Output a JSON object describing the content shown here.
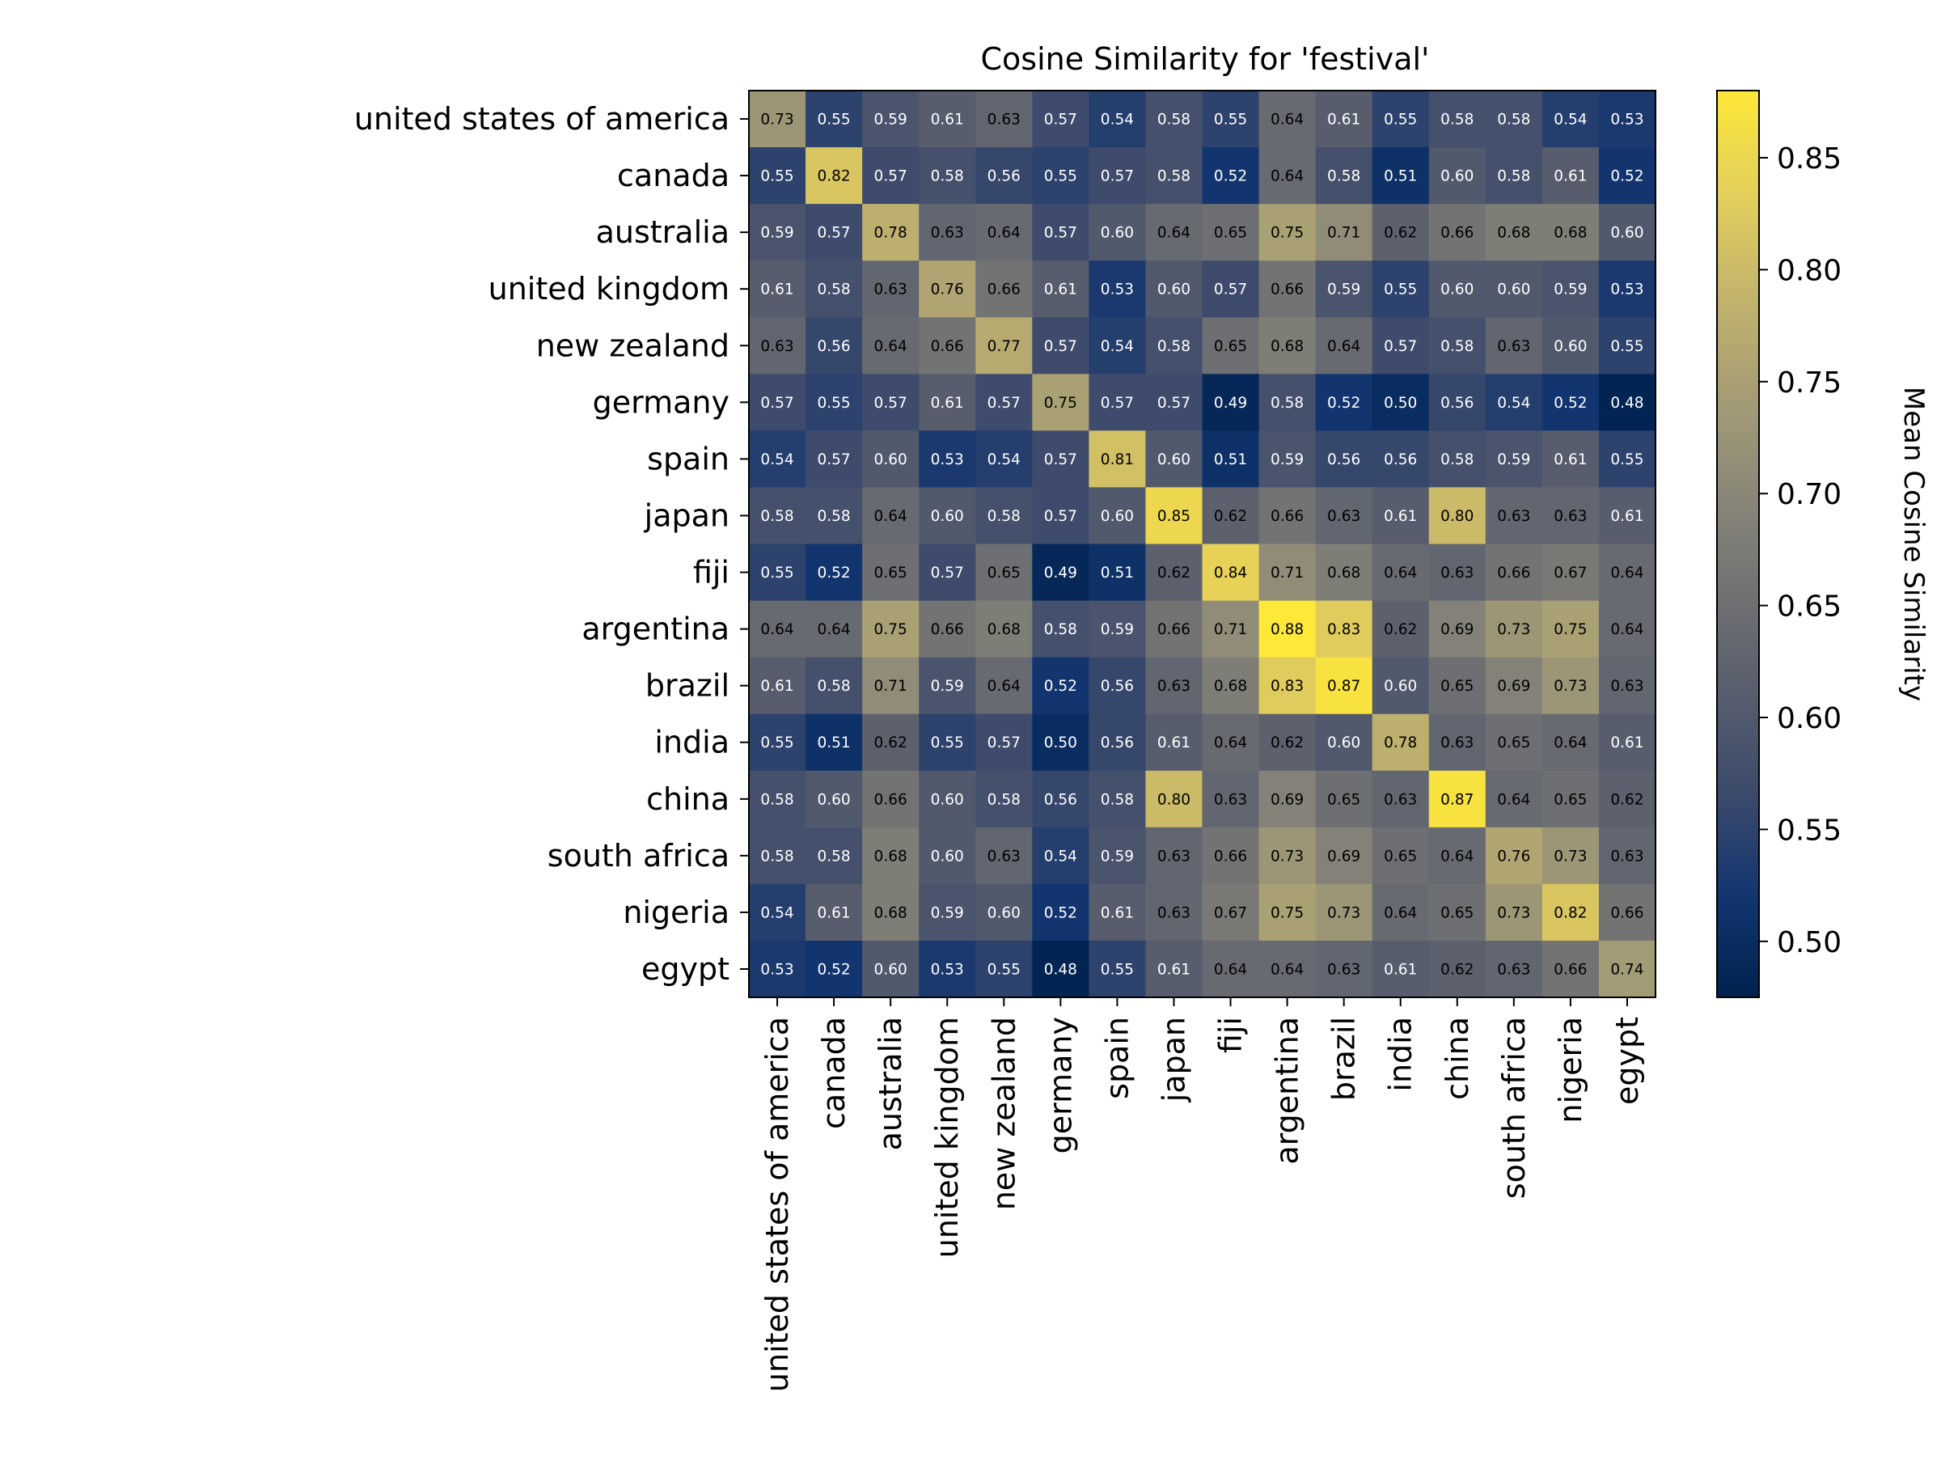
{
  "chart_data": {
    "type": "heatmap",
    "title": "Cosine Similarity for 'festival'",
    "rows": [
      "united states of america",
      "canada",
      "australia",
      "united kingdom",
      "new zealand",
      "germany",
      "spain",
      "japan",
      "fiji",
      "argentina",
      "brazil",
      "india",
      "china",
      "south africa",
      "nigeria",
      "egypt"
    ],
    "cols": [
      "united states of america",
      "canada",
      "australia",
      "united kingdom",
      "new zealand",
      "germany",
      "spain",
      "japan",
      "fiji",
      "argentina",
      "brazil",
      "india",
      "china",
      "south africa",
      "nigeria",
      "egypt"
    ],
    "values": [
      [
        0.73,
        0.55,
        0.59,
        0.61,
        0.63,
        0.57,
        0.54,
        0.58,
        0.55,
        0.64,
        0.61,
        0.55,
        0.58,
        0.58,
        0.54,
        0.53
      ],
      [
        0.55,
        0.82,
        0.57,
        0.58,
        0.56,
        0.55,
        0.57,
        0.58,
        0.52,
        0.64,
        0.58,
        0.51,
        0.6,
        0.58,
        0.61,
        0.52
      ],
      [
        0.59,
        0.57,
        0.78,
        0.63,
        0.64,
        0.57,
        0.6,
        0.64,
        0.65,
        0.75,
        0.71,
        0.62,
        0.66,
        0.68,
        0.68,
        0.6
      ],
      [
        0.61,
        0.58,
        0.63,
        0.76,
        0.66,
        0.61,
        0.53,
        0.6,
        0.57,
        0.66,
        0.59,
        0.55,
        0.6,
        0.6,
        0.59,
        0.53
      ],
      [
        0.63,
        0.56,
        0.64,
        0.66,
        0.77,
        0.57,
        0.54,
        0.58,
        0.65,
        0.68,
        0.64,
        0.57,
        0.58,
        0.63,
        0.6,
        0.55
      ],
      [
        0.57,
        0.55,
        0.57,
        0.61,
        0.57,
        0.75,
        0.57,
        0.57,
        0.49,
        0.58,
        0.52,
        0.5,
        0.56,
        0.54,
        0.52,
        0.48
      ],
      [
        0.54,
        0.57,
        0.6,
        0.53,
        0.54,
        0.57,
        0.81,
        0.6,
        0.51,
        0.59,
        0.56,
        0.56,
        0.58,
        0.59,
        0.61,
        0.55
      ],
      [
        0.58,
        0.58,
        0.64,
        0.6,
        0.58,
        0.57,
        0.6,
        0.85,
        0.62,
        0.66,
        0.63,
        0.61,
        0.8,
        0.63,
        0.63,
        0.61
      ],
      [
        0.55,
        0.52,
        0.65,
        0.57,
        0.65,
        0.49,
        0.51,
        0.62,
        0.84,
        0.71,
        0.68,
        0.64,
        0.63,
        0.66,
        0.67,
        0.64
      ],
      [
        0.64,
        0.64,
        0.75,
        0.66,
        0.68,
        0.58,
        0.59,
        0.66,
        0.71,
        0.88,
        0.83,
        0.62,
        0.69,
        0.73,
        0.75,
        0.64
      ],
      [
        0.61,
        0.58,
        0.71,
        0.59,
        0.64,
        0.52,
        0.56,
        0.63,
        0.68,
        0.83,
        0.87,
        0.6,
        0.65,
        0.69,
        0.73,
        0.63
      ],
      [
        0.55,
        0.51,
        0.62,
        0.55,
        0.57,
        0.5,
        0.56,
        0.61,
        0.64,
        0.62,
        0.6,
        0.78,
        0.63,
        0.65,
        0.64,
        0.61
      ],
      [
        0.58,
        0.6,
        0.66,
        0.6,
        0.58,
        0.56,
        0.58,
        0.8,
        0.63,
        0.69,
        0.65,
        0.63,
        0.87,
        0.64,
        0.65,
        0.62
      ],
      [
        0.58,
        0.58,
        0.68,
        0.6,
        0.63,
        0.54,
        0.59,
        0.63,
        0.66,
        0.73,
        0.69,
        0.65,
        0.64,
        0.76,
        0.73,
        0.63
      ],
      [
        0.54,
        0.61,
        0.68,
        0.59,
        0.6,
        0.52,
        0.61,
        0.63,
        0.67,
        0.75,
        0.73,
        0.64,
        0.65,
        0.73,
        0.82,
        0.66
      ],
      [
        0.53,
        0.52,
        0.6,
        0.53,
        0.55,
        0.48,
        0.55,
        0.61,
        0.64,
        0.64,
        0.63,
        0.61,
        0.62,
        0.63,
        0.66,
        0.74
      ]
    ],
    "vmin": 0.475,
    "vmax": 0.88,
    "colormap": "cividis",
    "colormap_stops": [
      "#00224e",
      "#123570",
      "#3b496c",
      "#575d6d",
      "#707173",
      "#8a8779",
      "#a69d75",
      "#c4b56c",
      "#e4cf5b",
      "#fee838"
    ],
    "colorbar": {
      "label": "Mean Cosine Similarity",
      "ticks": [
        0.5,
        0.55,
        0.6,
        0.65,
        0.7,
        0.75,
        0.8,
        0.85
      ],
      "tick_labels": [
        "0.50",
        "0.55",
        "0.60",
        "0.65",
        "0.70",
        "0.75",
        "0.80",
        "0.85"
      ]
    },
    "label_text_threshold": 0.62,
    "label_dark_color": "#000000",
    "label_light_color": "#ffffff",
    "grid": false,
    "legend": "colorbar-right"
  }
}
